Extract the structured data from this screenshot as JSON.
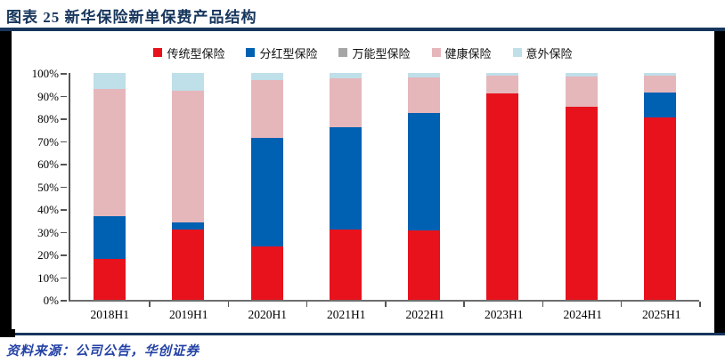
{
  "title": "图表 25   新华保险新单保费产品结构",
  "source": "资料来源：公司公告，华创证券",
  "colors": {
    "title_navy": "#17365D",
    "source_blue": "#2442A6",
    "frame_black": "#000000",
    "axis_gray": "#6e6e6e"
  },
  "chart_data": {
    "type": "bar",
    "stacked": true,
    "units": "percent",
    "title": "新华保险新单保费产品结构",
    "categories": [
      "2018H1",
      "2019H1",
      "2020H1",
      "2021H1",
      "2022H1",
      "2023H1",
      "2024H1",
      "2025H1"
    ],
    "series": [
      {
        "name": "传统型保险",
        "color": "#E8121D",
        "values": [
          18,
          31,
          23.5,
          31,
          30.5,
          91,
          85,
          80.5
        ]
      },
      {
        "name": "分红型保险",
        "color": "#0060B2",
        "values": [
          19,
          3,
          48,
          45,
          52,
          0,
          0,
          11
        ]
      },
      {
        "name": "万能型保险",
        "color": "#A6A6A6",
        "values": [
          0,
          0,
          0,
          0,
          0,
          0,
          0,
          0
        ]
      },
      {
        "name": "健康保险",
        "color": "#E5B7BB",
        "values": [
          56,
          58,
          25.5,
          21.5,
          15.5,
          8,
          13.5,
          7.5
        ]
      },
      {
        "name": "意外保险",
        "color": "#BFDFE9",
        "values": [
          7,
          8,
          3,
          2.5,
          2,
          1,
          1.5,
          1
        ]
      }
    ],
    "ylim": [
      0,
      100
    ],
    "ytick_step": 10,
    "ytick_suffix": "%",
    "grid": false,
    "legend_position": "top"
  }
}
